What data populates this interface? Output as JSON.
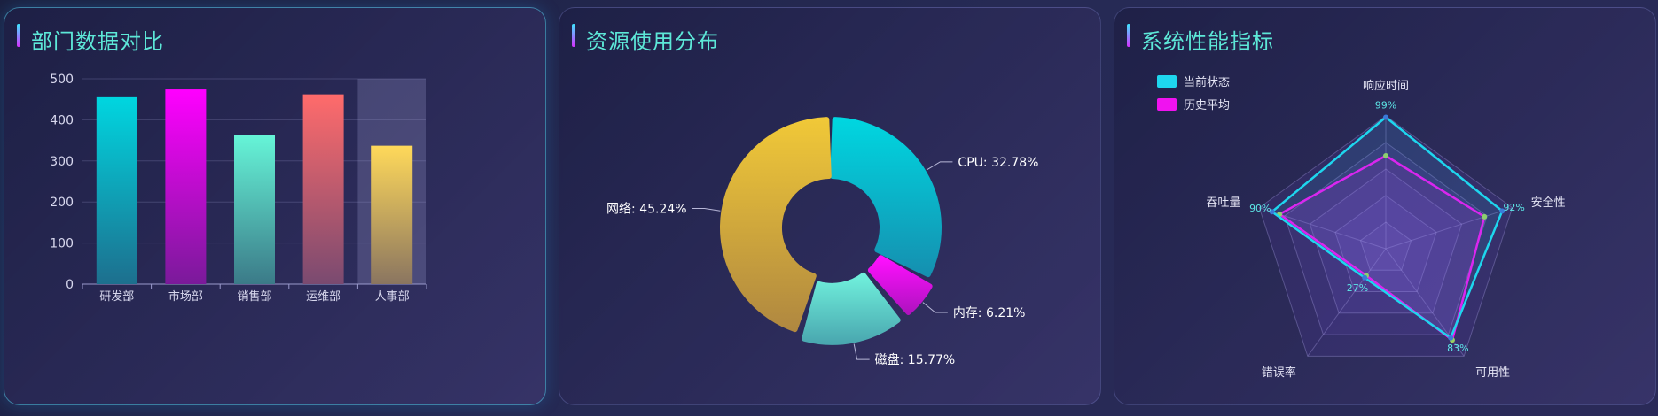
{
  "panels": {
    "bar": {
      "title": "部门数据对比"
    },
    "donut": {
      "title": "资源使用分布"
    },
    "radar": {
      "title": "系统性能指标"
    }
  },
  "colors": {
    "title": "#5de8d8",
    "bar_gradients": [
      [
        "#00d6e0",
        "#1d6f8e"
      ],
      [
        "#ff00ff",
        "#7a1a9a"
      ],
      [
        "#66f5d8",
        "#3b7a88"
      ],
      [
        "#ff6b6b",
        "#7a4a70"
      ],
      [
        "#ffd95a",
        "#8a7560"
      ]
    ],
    "donut": [
      "#06c9d9",
      "#d31cd6",
      "#66e6cc",
      "#e7c340"
    ],
    "radar_current": "#1ed6ee",
    "radar_history": "#f012f0"
  },
  "chart_data": [
    {
      "type": "bar",
      "title": "部门数据对比",
      "categories": [
        "研发部",
        "市场部",
        "销售部",
        "运维部",
        "人事部"
      ],
      "values": [
        455,
        474,
        364,
        462,
        337
      ],
      "ylim": [
        0,
        500
      ],
      "yticks": [
        "0",
        "100",
        "200",
        "300",
        "400",
        "500"
      ],
      "highlighted": "人事部",
      "grid": true
    },
    {
      "type": "pie",
      "title": "资源使用分布",
      "labels": [
        "CPU",
        "内存",
        "磁盘",
        "网络"
      ],
      "values": [
        32.78,
        6.21,
        15.77,
        45.24
      ],
      "slice_labels": [
        "CPU: 32.78%",
        "内存: 6.21%",
        "磁盘: 15.77%",
        "网络: 45.24%"
      ],
      "exploded": [
        "内存",
        "磁盘"
      ]
    },
    {
      "type": "radar",
      "title": "系统性能指标",
      "indicators": [
        "响应时间",
        "安全性",
        "可用性",
        "错误率",
        "吞吐量"
      ],
      "max": 100,
      "series": [
        {
          "name": "当前状态",
          "values": [
            99,
            92,
            83,
            27,
            90
          ]
        },
        {
          "name": "历史平均",
          "values": [
            70,
            78,
            85,
            25,
            84
          ]
        }
      ],
      "point_labels": [
        "99%",
        "92%",
        "83%",
        "27%",
        "90%"
      ],
      "legend": "top-left"
    }
  ]
}
